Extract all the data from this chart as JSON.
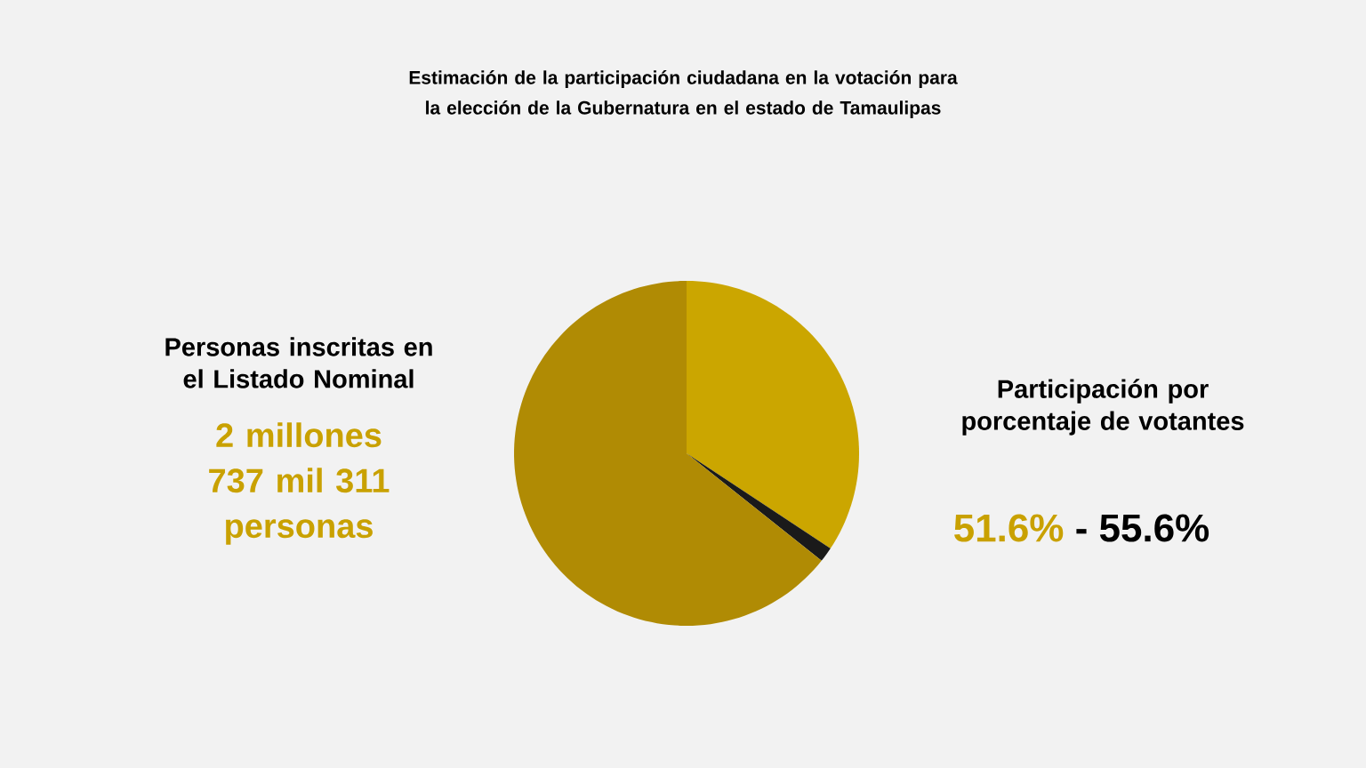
{
  "chart_data": {
    "type": "pie",
    "title": "Estimación de la participación ciudadana en la votación para la elección de la Gubernatura en el estado de Tamaulipas",
    "categories": [
      null,
      null,
      null
    ],
    "values": [
      34.3,
      1.4,
      64.3
    ],
    "colors": [
      "#cba600",
      "#1a1a1a",
      "#b08b04"
    ],
    "annotations": [
      "Personas inscritas en el Listado Nominal",
      "2 millones 737 mil 311 personas",
      "Participación por porcentaje de votantes",
      "51.6%",
      "- 55.6%"
    ]
  }
}
